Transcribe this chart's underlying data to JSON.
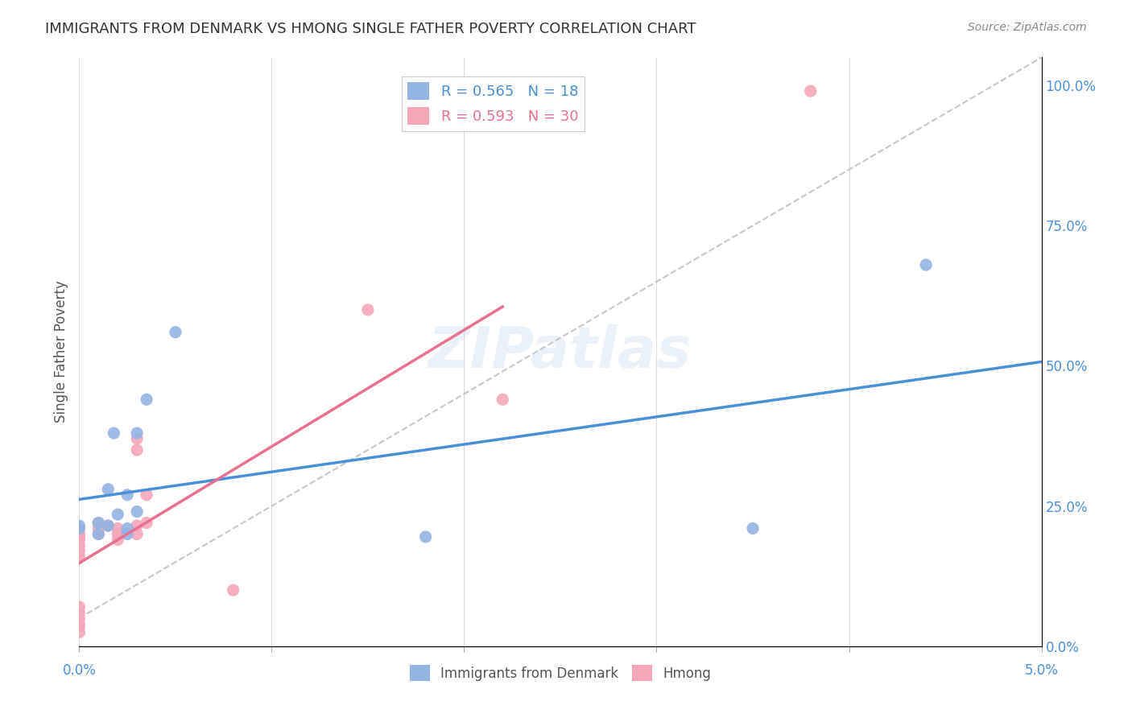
{
  "title": "IMMIGRANTS FROM DENMARK VS HMONG SINGLE FATHER POVERTY CORRELATION CHART",
  "source": "Source: ZipAtlas.com",
  "ylabel": "Single Father Poverty",
  "ylabel_right_ticks": [
    "0.0%",
    "25.0%",
    "50.0%",
    "75.0%",
    "100.0%"
  ],
  "ylabel_right_vals": [
    0.0,
    0.25,
    0.5,
    0.75,
    1.0
  ],
  "denmark_color": "#92b4e3",
  "hmong_color": "#f4a7b9",
  "denmark_line_color": "#4a90d9",
  "hmong_line_color": "#e87090",
  "diagonal_color": "#c8c8c8",
  "watermark": "ZIPatlas",
  "denmark_scatter_x": [
    0.0025,
    0.0,
    0.001,
    0.0015,
    0.0,
    0.001,
    0.003,
    0.002,
    0.0018,
    0.0025,
    0.0015,
    0.003,
    0.0035,
    0.0025,
    0.018,
    0.035,
    0.005,
    0.044
  ],
  "denmark_scatter_y": [
    0.21,
    0.21,
    0.2,
    0.215,
    0.215,
    0.22,
    0.24,
    0.235,
    0.38,
    0.27,
    0.28,
    0.38,
    0.44,
    0.2,
    0.195,
    0.21,
    0.56,
    0.68
  ],
  "hmong_scatter_x": [
    0.0,
    0.0,
    0.0,
    0.0,
    0.0,
    0.0,
    0.0,
    0.0,
    0.0,
    0.0,
    0.0,
    0.0,
    0.0,
    0.001,
    0.001,
    0.001,
    0.002,
    0.002,
    0.0015,
    0.002,
    0.003,
    0.003,
    0.0035,
    0.0035,
    0.003,
    0.003,
    0.008,
    0.015,
    0.022,
    0.038
  ],
  "hmong_scatter_y": [
    0.16,
    0.17,
    0.18,
    0.19,
    0.195,
    0.2,
    0.21,
    0.07,
    0.06,
    0.05,
    0.04,
    0.035,
    0.025,
    0.22,
    0.2,
    0.21,
    0.19,
    0.2,
    0.215,
    0.21,
    0.2,
    0.215,
    0.22,
    0.27,
    0.35,
    0.37,
    0.1,
    0.6,
    0.44,
    0.99
  ],
  "xlim": [
    0.0,
    0.05
  ],
  "ylim": [
    0.0,
    1.05
  ],
  "figsize": [
    14.06,
    8.92
  ],
  "dpi": 100,
  "background_color": "#ffffff",
  "grid_color": "#dddddd",
  "title_color": "#333333",
  "axis_label_color": "#4a90d9",
  "watermark_color": "#c8d8f0",
  "watermark_alpha": 0.35
}
